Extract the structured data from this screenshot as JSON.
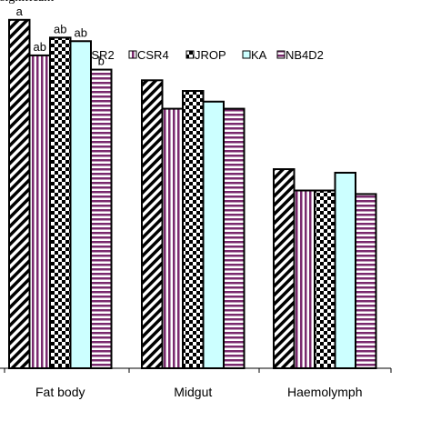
{
  "header": {
    "fragment": "significant"
  },
  "chart_data": {
    "type": "bar",
    "categories": [
      "Fat body",
      "Midgut",
      "Haemolymph"
    ],
    "series": [
      {
        "name": "CSR2",
        "values": [
          98,
          81,
          56
        ],
        "pattern": "diagonal",
        "color": "#000000"
      },
      {
        "name": "CSR4",
        "values": [
          88,
          73,
          50
        ],
        "pattern": "vertical",
        "color": "#7a2a6e"
      },
      {
        "name": "JROP",
        "values": [
          93,
          78,
          50
        ],
        "pattern": "checker",
        "color": "#000000"
      },
      {
        "name": "KA",
        "values": [
          92,
          75,
          55
        ],
        "pattern": "solid",
        "color": "#ccffff"
      },
      {
        "name": "NB4D2",
        "values": [
          84,
          73,
          49
        ],
        "pattern": "horizontal",
        "color": "#7a2a6e"
      }
    ],
    "significance_labels": [
      [
        "a",
        "ab",
        "ab",
        "ab",
        "b"
      ],
      [],
      []
    ],
    "ylim": [
      0,
      100
    ],
    "grid": false,
    "legend_position": "top-center",
    "title": "",
    "xlabel": "",
    "ylabel": ""
  }
}
